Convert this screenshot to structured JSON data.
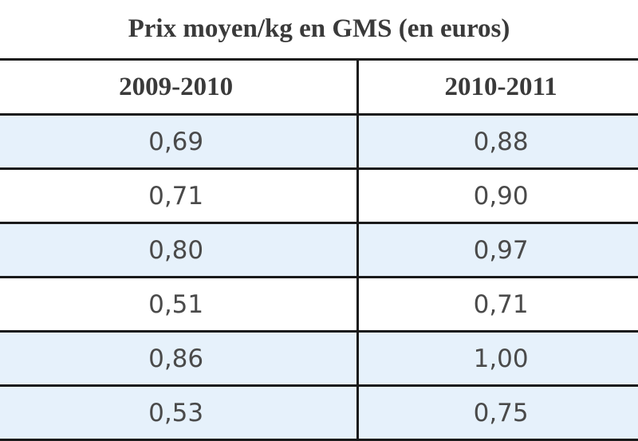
{
  "table": {
    "title": "Prix moyen/kg en GMS (en euros)",
    "columns": [
      "2009-2010",
      "2010-2011"
    ],
    "rows": [
      [
        "0,69",
        "0,88"
      ],
      [
        "0,71",
        "0,90"
      ],
      [
        "0,80",
        "0,97"
      ],
      [
        "0,51",
        "0,71"
      ],
      [
        "0,86",
        "1,00"
      ],
      [
        "0,53",
        "0,75"
      ]
    ]
  },
  "colors": {
    "alt_row_background": "#e6f1fb",
    "rule_color": "#1a1a1a"
  }
}
